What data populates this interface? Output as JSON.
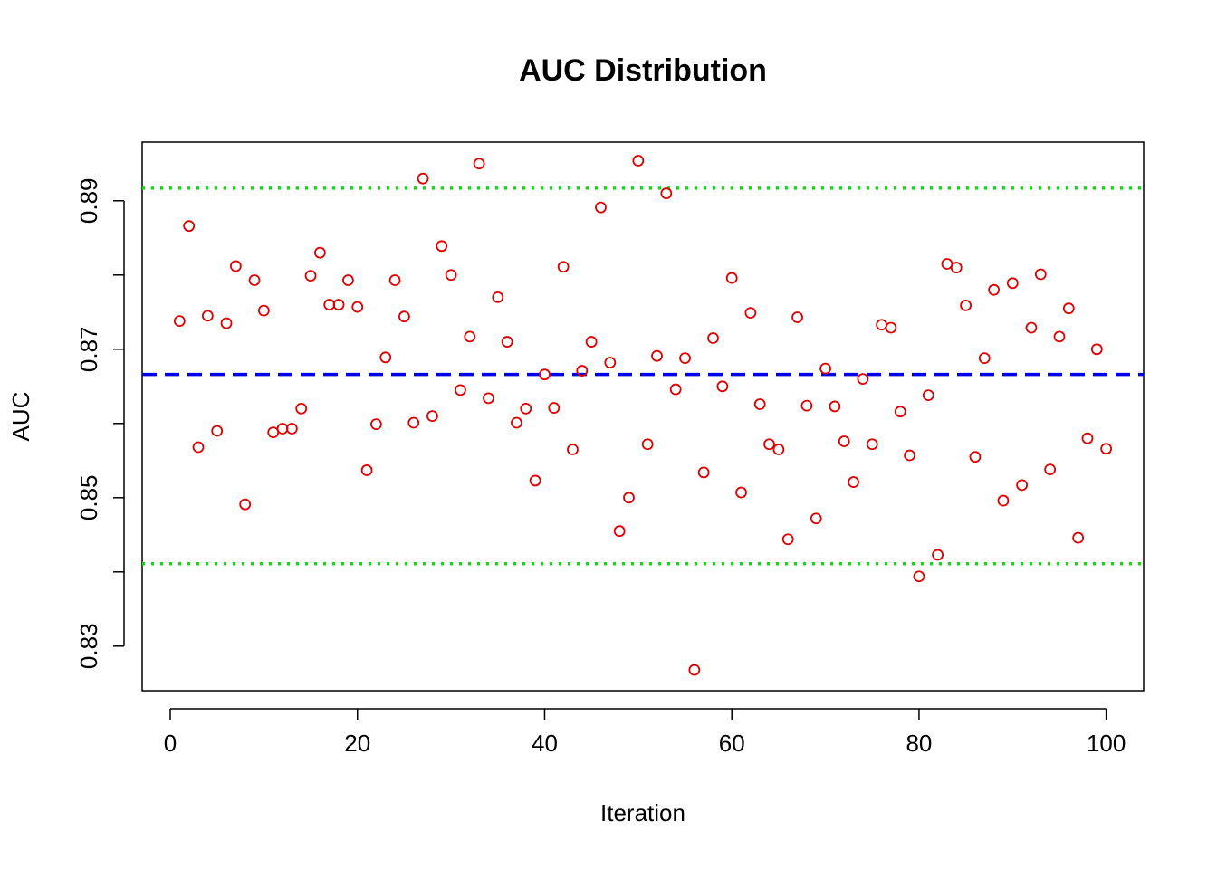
{
  "chart_data": {
    "type": "scatter",
    "title": "AUC Distribution",
    "x_label": "Iteration",
    "y_label": "AUC",
    "xlim": [
      -3,
      104
    ],
    "ylim": [
      0.824,
      0.8979
    ],
    "xticks": [
      0,
      20,
      40,
      60,
      80,
      100
    ],
    "yticks": [
      0.83,
      {
        "value": 0.84,
        "label": null
      },
      0.85,
      {
        "value": 0.86,
        "label": null
      },
      0.87,
      {
        "value": 0.88,
        "label": null
      },
      0.89
    ],
    "hlines": [
      {
        "value": 0.8917,
        "color": "#00e600",
        "style": "dotted"
      },
      {
        "value": 0.8666,
        "color": "#0000ee",
        "style": "dashed"
      },
      {
        "value": 0.8411,
        "color": "#00e600",
        "style": "dotted"
      }
    ],
    "series": [
      {
        "color": "#e00000",
        "x": [
          1,
          2,
          3,
          4,
          5,
          6,
          7,
          8,
          9,
          10,
          11,
          12,
          13,
          14,
          15,
          16,
          17,
          18,
          19,
          20,
          21,
          22,
          23,
          24,
          25,
          26,
          27,
          28,
          29,
          30,
          31,
          32,
          33,
          34,
          35,
          36,
          37,
          38,
          39,
          40,
          41,
          42,
          43,
          44,
          45,
          46,
          47,
          48,
          49,
          50,
          51,
          52,
          53,
          54,
          55,
          56,
          57,
          58,
          59,
          60,
          61,
          62,
          63,
          64,
          65,
          66,
          67,
          68,
          69,
          70,
          71,
          72,
          73,
          74,
          75,
          76,
          77,
          78,
          79,
          80,
          81,
          82,
          83,
          84,
          85,
          86,
          87,
          88,
          89,
          90,
          91,
          92,
          93,
          94,
          95,
          96,
          97,
          98,
          99,
          100
        ],
        "values": [
          0.8738,
          0.8866,
          0.8568,
          0.8745,
          0.859,
          0.8735,
          0.8812,
          0.8491,
          0.8793,
          0.8752,
          0.8588,
          0.8593,
          0.8593,
          0.862,
          0.8799,
          0.883,
          0.876,
          0.876,
          0.8793,
          0.8757,
          0.8537,
          0.8599,
          0.8689,
          0.8793,
          0.8744,
          0.8601,
          0.893,
          0.861,
          0.8839,
          0.88,
          0.8645,
          0.8717,
          0.895,
          0.8634,
          0.877,
          0.871,
          0.8601,
          0.862,
          0.8523,
          0.8666,
          0.8621,
          0.8811,
          0.8565,
          0.8671,
          0.871,
          0.8891,
          0.8682,
          0.8455,
          0.85,
          0.8954,
          0.8572,
          0.8691,
          0.891,
          0.8646,
          0.8688,
          0.8268,
          0.8534,
          0.8715,
          0.865,
          0.8796,
          0.8507,
          0.8749,
          0.8626,
          0.8572,
          0.8565,
          0.8444,
          0.8743,
          0.8624,
          0.8472,
          0.8674,
          0.8623,
          0.8576,
          0.8521,
          0.866,
          0.8572,
          0.8733,
          0.8729,
          0.8616,
          0.8557,
          0.8394,
          0.8638,
          0.8423,
          0.8815,
          0.881,
          0.8759,
          0.8555,
          0.8688,
          0.878,
          0.8496,
          0.8789,
          0.8517,
          0.8729,
          0.8801,
          0.8538,
          0.8717,
          0.8755,
          0.8446,
          0.858,
          0.87,
          0.8566
        ]
      }
    ]
  }
}
